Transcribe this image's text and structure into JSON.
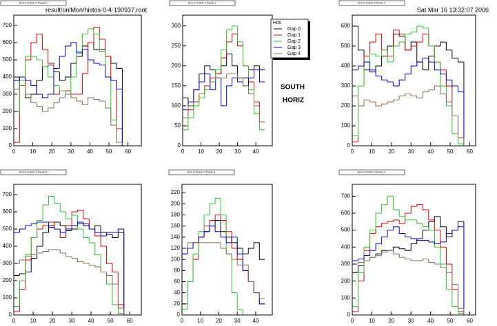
{
  "header": {
    "file": "result/onlMon/histos-0-4-190937.root",
    "date": "Sat Mar 16 13:32:07 2006"
  },
  "annotations": [
    "SOUTH",
    "HORIZ"
  ],
  "chart_data": [
    {
      "type": "histogram",
      "title": "Arm 0 Orient 0 Panel 0",
      "bins": [
        0,
        3,
        6,
        9,
        12,
        15,
        18,
        21,
        24,
        27,
        30,
        33,
        36,
        39,
        42,
        45,
        48,
        51,
        54,
        57,
        60
      ],
      "xlim": [
        0,
        67
      ],
      "xticks": [
        0,
        10,
        20,
        30,
        40,
        50,
        60
      ],
      "ylim": [
        0,
        760
      ],
      "yticks": [
        0,
        100,
        200,
        300,
        400,
        500,
        600,
        700
      ],
      "series": [
        {
          "color": "#000000",
          "values": [
            400,
            350,
            280,
            300,
            380,
            460,
            470,
            430,
            380,
            400,
            480,
            520,
            580,
            600,
            560,
            560,
            520,
            480,
            450,
            0
          ]
        },
        {
          "color": "#e00000",
          "values": [
            20,
            350,
            500,
            600,
            650,
            560,
            480,
            300,
            320,
            320,
            300,
            300,
            420,
            600,
            690,
            620,
            520,
            380,
            100,
            0
          ]
        },
        {
          "color": "#30c030",
          "values": [
            200,
            380,
            520,
            520,
            500,
            460,
            400,
            350,
            320,
            300,
            400,
            550,
            650,
            680,
            650,
            550,
            400,
            150,
            20,
            0
          ]
        },
        {
          "color": "#0000d0",
          "values": [
            380,
            400,
            380,
            350,
            300,
            280,
            300,
            450,
            520,
            580,
            600,
            540,
            560,
            500,
            480,
            470,
            400,
            380,
            330,
            0
          ]
        },
        {
          "color": "#8b6a50",
          "values": [
            330,
            350,
            300,
            250,
            230,
            200,
            220,
            250,
            280,
            300,
            280,
            260,
            240,
            280,
            270,
            260,
            220,
            120,
            20,
            0
          ]
        }
      ]
    },
    {
      "type": "histogram",
      "title": "Arm 0 Orient 0 Panel 1",
      "legend_title": "Hits",
      "bins": [
        0,
        3,
        6,
        9,
        12,
        15,
        18,
        21,
        24,
        27,
        30,
        33,
        36,
        39,
        42,
        45
      ],
      "xlim": [
        0,
        49
      ],
      "xticks": [
        0,
        10,
        20,
        30,
        40
      ],
      "ylim": [
        0,
        327
      ],
      "yticks": [
        0,
        50,
        100,
        150,
        200,
        250,
        300
      ],
      "series": [
        {
          "name": "Gap 0",
          "color": "#000000",
          "values": [
            120,
            100,
            140,
            180,
            200,
            190,
            180,
            200,
            230,
            200,
            170,
            170,
            190,
            200,
            190
          ]
        },
        {
          "name": "Gap 1",
          "color": "#e00000",
          "values": [
            50,
            90,
            110,
            130,
            150,
            170,
            180,
            220,
            260,
            280,
            250,
            200,
            160,
            110,
            60
          ]
        },
        {
          "name": "Gap 2",
          "color": "#30c030",
          "values": [
            40,
            70,
            100,
            120,
            140,
            160,
            190,
            240,
            290,
            300,
            260,
            200,
            140,
            80,
            40
          ]
        },
        {
          "name": "Gap 3",
          "color": "#0000d0",
          "values": [
            90,
            110,
            140,
            160,
            180,
            140,
            170,
            100,
            150,
            170,
            160,
            150,
            170,
            190,
            160
          ]
        },
        {
          "name": "Gap 4",
          "color": "#8b6a50",
          "values": [
            70,
            100,
            110,
            130,
            150,
            160,
            170,
            170,
            180,
            180,
            170,
            150,
            130,
            100,
            60
          ]
        }
      ]
    },
    {
      "type": "histogram",
      "title": "Arm 0 Orient 0 Panel 2",
      "bins": [
        0,
        3,
        6,
        9,
        12,
        15,
        18,
        21,
        24,
        27,
        30,
        33,
        36,
        39,
        42,
        45,
        48,
        51,
        54,
        57,
        60
      ],
      "xlim": [
        0,
        63
      ],
      "xticks": [
        0,
        10,
        20,
        30,
        40,
        50,
        60
      ],
      "ylim": [
        0,
        655
      ],
      "yticks": [
        0,
        100,
        200,
        300,
        400,
        500,
        600
      ],
      "series": [
        {
          "color": "#000000",
          "values": [
            600,
            480,
            380,
            370,
            400,
            450,
            500,
            560,
            550,
            480,
            520,
            420,
            380,
            450,
            500,
            520,
            480,
            440,
            420,
            0
          ]
        },
        {
          "color": "#e00000",
          "values": [
            20,
            300,
            450,
            520,
            560,
            480,
            450,
            580,
            560,
            480,
            500,
            520,
            560,
            500,
            420,
            380,
            300,
            150,
            40,
            0
          ]
        },
        {
          "color": "#30c030",
          "values": [
            50,
            300,
            420,
            460,
            450,
            480,
            420,
            500,
            520,
            560,
            570,
            600,
            590,
            500,
            420,
            300,
            200,
            60,
            10,
            0
          ]
        },
        {
          "color": "#0000d0",
          "values": [
            380,
            400,
            420,
            380,
            350,
            330,
            320,
            300,
            330,
            360,
            400,
            420,
            440,
            420,
            380,
            360,
            330,
            300,
            270,
            0
          ]
        },
        {
          "color": "#8b6a50",
          "values": [
            250,
            200,
            230,
            220,
            200,
            210,
            220,
            230,
            250,
            260,
            250,
            240,
            270,
            280,
            300,
            260,
            220,
            150,
            40,
            0
          ]
        }
      ]
    },
    {
      "type": "histogram",
      "title": "Arm 0 Orient 0 Panel 5",
      "bins": [
        0,
        3,
        6,
        9,
        12,
        15,
        18,
        21,
        24,
        27,
        30,
        33,
        36,
        39,
        42,
        45,
        48,
        51,
        54,
        57,
        60
      ],
      "xlim": [
        0,
        66
      ],
      "xticks": [
        0,
        10,
        20,
        30,
        40,
        50,
        60
      ],
      "ylim": [
        0,
        760
      ],
      "yticks": [
        0,
        100,
        200,
        300,
        400,
        500,
        600,
        700
      ],
      "series": [
        {
          "color": "#000000",
          "values": [
            230,
            240,
            250,
            330,
            400,
            480,
            520,
            540,
            520,
            490,
            500,
            530,
            520,
            500,
            520,
            480,
            470,
            450,
            480,
            0
          ]
        },
        {
          "color": "#e00000",
          "values": [
            20,
            150,
            320,
            450,
            500,
            520,
            540,
            500,
            450,
            520,
            600,
            610,
            560,
            500,
            460,
            400,
            300,
            250,
            60,
            0
          ]
        },
        {
          "color": "#30c030",
          "values": [
            50,
            200,
            350,
            450,
            550,
            640,
            690,
            650,
            600,
            560,
            580,
            500,
            450,
            420,
            350,
            250,
            180,
            60,
            10,
            0
          ]
        },
        {
          "color": "#0000d0",
          "values": [
            480,
            500,
            520,
            530,
            540,
            540,
            510,
            500,
            480,
            500,
            520,
            540,
            530,
            500,
            480,
            460,
            480,
            480,
            500,
            0
          ]
        },
        {
          "color": "#8b6a50",
          "values": [
            300,
            320,
            340,
            350,
            360,
            370,
            380,
            380,
            360,
            340,
            330,
            310,
            300,
            290,
            280,
            250,
            230,
            180,
            40,
            0
          ]
        }
      ]
    },
    {
      "type": "histogram",
      "title": "Arm 0 Orient 0 Panel 4",
      "bins": [
        0,
        3,
        6,
        9,
        12,
        15,
        18,
        21,
        24,
        27,
        30,
        33,
        36,
        39,
        42,
        45
      ],
      "xlim": [
        0,
        49
      ],
      "xticks": [
        0,
        10,
        20,
        30,
        40
      ],
      "ylim": [
        0,
        235
      ],
      "yticks": [
        0,
        20,
        40,
        60,
        80,
        100,
        120,
        140,
        160,
        180,
        200,
        220
      ],
      "series": [
        {
          "color": "#000000",
          "values": [
            110,
            120,
            130,
            140,
            150,
            160,
            170,
            150,
            140,
            130,
            120,
            110,
            120,
            130,
            100
          ]
        },
        {
          "color": "#e00000",
          "values": [
            20,
            60,
            100,
            140,
            160,
            170,
            180,
            170,
            150,
            120,
            100,
            80,
            60,
            40,
            20
          ]
        },
        {
          "color": "#30c030",
          "values": [
            10,
            60,
            110,
            150,
            180,
            200,
            210,
            180,
            110,
            40,
            10,
            0,
            0,
            0,
            0
          ]
        },
        {
          "color": "#0000d0",
          "values": [
            110,
            120,
            130,
            140,
            150,
            160,
            150,
            140,
            130,
            140,
            110,
            80,
            60,
            40,
            20
          ]
        },
        {
          "color": "#8b6a50",
          "values": [
            120,
            130,
            130,
            130,
            130,
            130,
            130,
            120,
            110,
            100,
            90,
            90,
            60,
            40,
            30
          ]
        }
      ]
    },
    {
      "type": "histogram",
      "title": "Arm 0 Orient 0 Panel 3",
      "bins": [
        0,
        3,
        6,
        9,
        12,
        15,
        18,
        21,
        24,
        27,
        30,
        33,
        36,
        39,
        42,
        45,
        48,
        51,
        54,
        57,
        60
      ],
      "xlim": [
        0,
        63
      ],
      "xticks": [
        0,
        10,
        20,
        30,
        40,
        50,
        60
      ],
      "ylim": [
        0,
        770
      ],
      "yticks": [
        0,
        100,
        200,
        300,
        400,
        500,
        600,
        700
      ],
      "series": [
        {
          "color": "#000000",
          "values": [
            250,
            290,
            320,
            340,
            360,
            380,
            380,
            400,
            390,
            380,
            420,
            450,
            500,
            550,
            580,
            520,
            460,
            500,
            550,
            0
          ]
        },
        {
          "color": "#e00000",
          "values": [
            20,
            200,
            380,
            480,
            520,
            540,
            550,
            560,
            540,
            600,
            640,
            650,
            620,
            560,
            500,
            400,
            300,
            150,
            20,
            0
          ]
        },
        {
          "color": "#30c030",
          "values": [
            50,
            250,
            400,
            500,
            600,
            650,
            700,
            620,
            580,
            560,
            560,
            540,
            520,
            500,
            400,
            300,
            150,
            50,
            10,
            0
          ]
        },
        {
          "color": "#0000d0",
          "values": [
            320,
            330,
            350,
            380,
            420,
            460,
            500,
            520,
            480,
            460,
            450,
            440,
            440,
            430,
            420,
            430,
            480,
            500,
            520,
            0
          ]
        },
        {
          "color": "#8b6a50",
          "values": [
            300,
            310,
            320,
            340,
            350,
            370,
            380,
            360,
            340,
            330,
            320,
            320,
            330,
            310,
            300,
            280,
            250,
            180,
            40,
            0
          ]
        }
      ]
    }
  ]
}
